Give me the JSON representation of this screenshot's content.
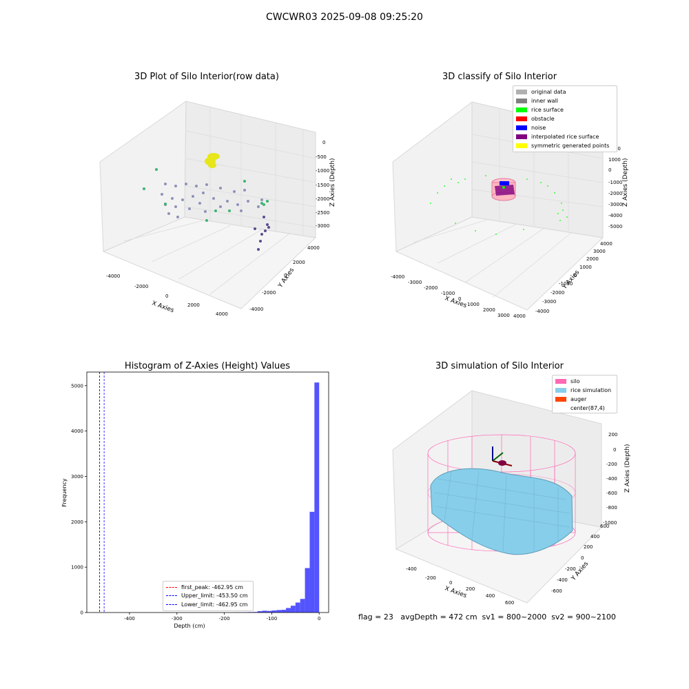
{
  "figure": {
    "suptitle": "CWCWR03 2025-09-08 09:25:20"
  },
  "footer": {
    "text": "flag = 23   avgDepth = 472 cm  sv1 = 800~2000  sv2 = 900~2100"
  },
  "panels": {
    "raw": {
      "title": "3D Plot of Silo Interior(row data)",
      "xlabel": "X Axies",
      "ylabel": "Y Axies",
      "zlabel": "Z Axies (Depth)",
      "xticks": [
        "-4000",
        "-2000",
        "0",
        "2000",
        "4000"
      ],
      "yticks": [
        "-4000",
        "-2000",
        "0",
        "2000",
        "4000"
      ],
      "zticks": [
        "0",
        "-500",
        "-1000",
        "-1500",
        "-2000",
        "-2500",
        "-3000"
      ]
    },
    "classify": {
      "title": "3D classify of Silo Interior",
      "xlabel": "X Axies",
      "ylabel": "Y Axies",
      "zlabel": "Z Axies (Depth)",
      "xticks": [
        "-4000",
        "-3000",
        "-2000",
        "-1000",
        "0",
        "1000",
        "2000",
        "3000",
        "4000"
      ],
      "yticks": [
        "-4000",
        "-3000",
        "-2000",
        "-1000",
        "0",
        "1000",
        "2000",
        "3000",
        "4000"
      ],
      "zticks": [
        "2000",
        "1000",
        "0",
        "-1000",
        "-2000",
        "-3000",
        "-4000",
        "-5000"
      ],
      "legend": [
        {
          "label": "original data",
          "color": "#b0b0b0"
        },
        {
          "label": "inner wall",
          "color": "#808080"
        },
        {
          "label": "rice surface",
          "color": "#00ff00"
        },
        {
          "label": "obstacle",
          "color": "#ff0000"
        },
        {
          "label": "noise",
          "color": "#0000ff"
        },
        {
          "label": "interpolated rice surface",
          "color": "#800080"
        },
        {
          "label": "symmetric generated points",
          "color": "#ffff00"
        }
      ]
    },
    "simulation": {
      "title": "3D simulation of Silo Interior",
      "xlabel": "X Axies",
      "ylabel": "Y Axies",
      "zlabel": "Z Axies (Depth)",
      "xticks": [
        "-400",
        "-200",
        "0",
        "200",
        "400",
        "600"
      ],
      "yticks": [
        "-600",
        "-400",
        "-200",
        "0",
        "200",
        "400",
        "600"
      ],
      "zticks": [
        "200",
        "0",
        "-200",
        "-400",
        "-600",
        "-800",
        "-1000"
      ],
      "legend": [
        {
          "label": "silo",
          "color": "#ff69b4"
        },
        {
          "label": "rice simulation",
          "color": "#87ceeb"
        },
        {
          "label": "auger",
          "color": "#ff4500"
        },
        {
          "label": "center(87,4)",
          "color": "#ffffff"
        }
      ]
    }
  },
  "chart_data": {
    "type": "bar",
    "title": "Histogram of Z-Axies (Height) Values",
    "xlabel": "Depth (cm)",
    "ylabel": "Frequency",
    "xlim": [
      -490,
      20
    ],
    "ylim": [
      0,
      5300
    ],
    "xticks": [
      -400,
      -300,
      -200,
      -100,
      0
    ],
    "yticks": [
      0,
      1000,
      2000,
      3000,
      4000,
      5000
    ],
    "bin_width": 10,
    "bins": [
      {
        "x0": -180,
        "count": 5
      },
      {
        "x0": -170,
        "count": 6
      },
      {
        "x0": -160,
        "count": 8
      },
      {
        "x0": -150,
        "count": 10
      },
      {
        "x0": -140,
        "count": 12
      },
      {
        "x0": -130,
        "count": 30
      },
      {
        "x0": -120,
        "count": 40
      },
      {
        "x0": -110,
        "count": 35
      },
      {
        "x0": -100,
        "count": 45
      },
      {
        "x0": -90,
        "count": 55
      },
      {
        "x0": -80,
        "count": 60
      },
      {
        "x0": -70,
        "count": 100
      },
      {
        "x0": -60,
        "count": 150
      },
      {
        "x0": -50,
        "count": 220
      },
      {
        "x0": -40,
        "count": 300
      },
      {
        "x0": -30,
        "count": 980
      },
      {
        "x0": -20,
        "count": 2220
      },
      {
        "x0": -10,
        "count": 5070
      }
    ],
    "vlines": [
      {
        "name": "first_peak",
        "label": "first_peak: -462.95 cm",
        "x": -462.95,
        "color": "#ff0000"
      },
      {
        "name": "upper_limit",
        "label": "Upper_limit: -453.50 cm",
        "x": -453.5,
        "color": "#0000ff"
      },
      {
        "name": "lower_limit",
        "label": "Lower_limit: -462.95 cm",
        "x": -462.95,
        "color": "#0000ff"
      }
    ],
    "bar_color": "#4b4bff",
    "legend_position": "lower-center"
  }
}
